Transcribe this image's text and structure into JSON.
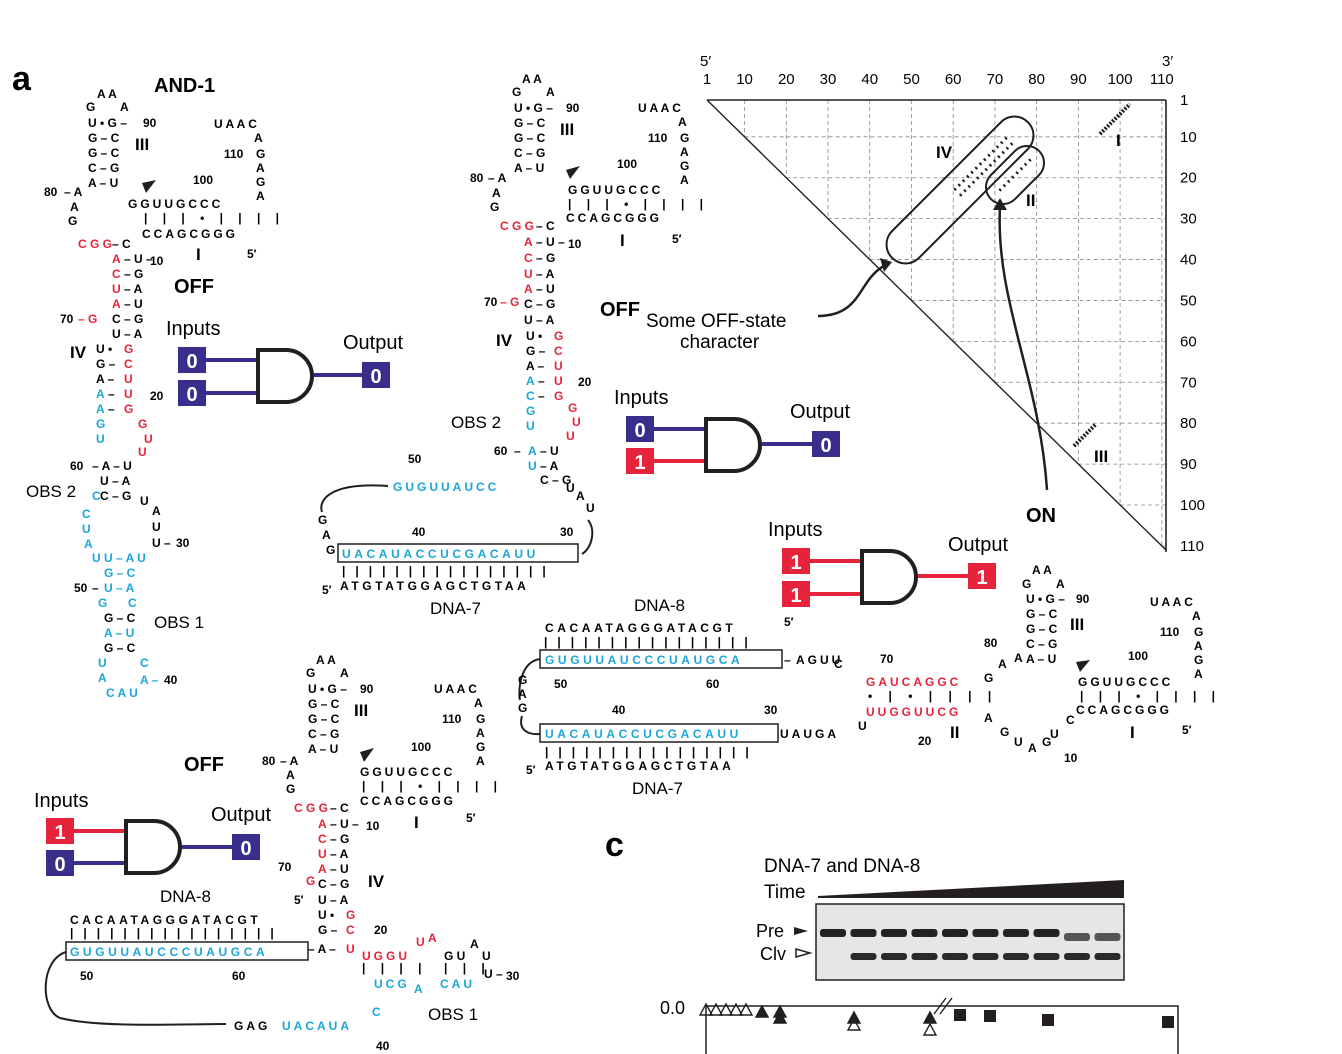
{
  "colors": {
    "red": "#e5243b",
    "blue": "#1aa6d8",
    "purple": "#3a2e8c",
    "black": "#231f20"
  },
  "panel_a": {
    "letter": "a",
    "title": "AND-1",
    "off_label": "OFF",
    "inputs_label": "Inputs",
    "output_label": "Output",
    "obs1": "OBS 1",
    "obs2": "OBS 2",
    "gate_inputs": [
      "0",
      "0"
    ],
    "gate_output": "0",
    "stem_labels": [
      "III",
      "I",
      "IV"
    ],
    "numbers": [
      "90",
      "110",
      "100",
      "80",
      "10",
      "5′",
      "70",
      "20",
      "60",
      "30",
      "50",
      "40"
    ],
    "hairpin_top": [
      "A",
      "A",
      "G",
      "A",
      "U",
      "G",
      "G",
      "C",
      "G",
      "C",
      "C",
      "G",
      "A",
      "U"
    ],
    "tetraloop": [
      "U",
      "A",
      "A",
      "C",
      "A",
      "G",
      "A",
      "G",
      "A"
    ],
    "stem_I_top": "GGUUGCCC",
    "stem_I_bottom": "CCAGCGGG"
  },
  "panel_b_dna7": {
    "off_label": "OFF",
    "obs2": "OBS 2",
    "inputs_label": "Inputs",
    "output_label": "Output",
    "gate_inputs": [
      "0",
      "1"
    ],
    "gate_output": "0",
    "rna_strand": "GUGUUAUCC",
    "hybrid_rna": "UACAUACCUCGACAUU",
    "dna_strand": "ATGTATGGAGCTGTAA",
    "dna_name": "DNA-7",
    "numbers": [
      "90",
      "110",
      "100",
      "80",
      "10",
      "5′",
      "70",
      "20",
      "60",
      "50",
      "40",
      "30",
      "5′"
    ],
    "stem_labels": [
      "III",
      "I",
      "IV"
    ]
  },
  "panel_c_left": {
    "off_label": "OFF",
    "inputs_label": "Inputs",
    "output_label": "Output",
    "gate_inputs": [
      "1",
      "0"
    ],
    "gate_output": "0",
    "dna_name": "DNA-8",
    "dna_strand": "CACAATAGGGATACGT",
    "hybrid_rna": "GUGUUAUCCCUAUGCA",
    "tail": "GAGUACAUA",
    "obs1": "OBS 1",
    "numbers": [
      "90",
      "110",
      "100",
      "80",
      "10",
      "5′",
      "70",
      "5′",
      "20",
      "30",
      "50",
      "60",
      "40"
    ],
    "stem_labels": [
      "III",
      "I",
      "IV"
    ]
  },
  "panel_on": {
    "on_label": "ON",
    "inputs_label": "Inputs",
    "output_label": "Output",
    "gate_inputs": [
      "1",
      "1"
    ],
    "gate_output": "1",
    "dna8_name": "DNA-8",
    "dna8_strand": "CACAATAGGGATACGT",
    "dna8_hybrid": "GUGUUAUCCCUAUGCA",
    "dna7_name": "DNA-7",
    "dna7_hybrid": "UACAUACCUCGACAUU",
    "dna7_strand": "ATGTATGGAGCTGTAA",
    "tail_top": "AGUU",
    "tail_bottom": "UAUGA",
    "red_top": "GAUCAGGC",
    "red_bottom": "UUGGUUCG",
    "numbers": [
      "70",
      "80",
      "90",
      "110",
      "100",
      "50",
      "60",
      "40",
      "30",
      "20",
      "10",
      "5′",
      "5′"
    ],
    "stem_labels": [
      "III",
      "II",
      "I"
    ]
  },
  "dotplot": {
    "five_prime": "5′",
    "three_prime": "3′",
    "x_ticks": [
      "1",
      "10",
      "20",
      "30",
      "40",
      "50",
      "60",
      "70",
      "80",
      "90",
      "100",
      "110"
    ],
    "y_ticks": [
      "1",
      "10",
      "20",
      "30",
      "40",
      "50",
      "60",
      "70",
      "80",
      "90",
      "100",
      "110"
    ],
    "region_labels": [
      "IV",
      "II",
      "I",
      "III"
    ],
    "annotation": "Some OFF-state character",
    "annotation_line1": "Some OFF-state",
    "annotation_line2": "character",
    "off_label": "OFF",
    "on_label": "ON"
  },
  "panel_c": {
    "letter": "c",
    "conditions": "DNA-7 and DNA-8",
    "time": "Time",
    "pre": "Pre",
    "clv": "Clv",
    "y_value": "0.0"
  }
}
